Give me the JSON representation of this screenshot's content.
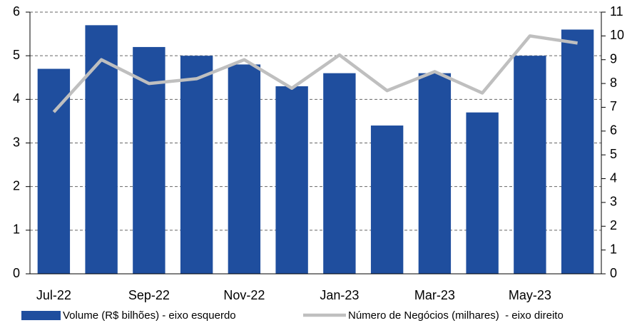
{
  "chart_data": {
    "type": "bar_line",
    "categories": [
      "Jul-22",
      null,
      "Sep-22",
      null,
      "Nov-22",
      null,
      "Jan-23",
      null,
      "Mar-23",
      null,
      "May-23",
      null
    ],
    "series": [
      {
        "name": "Volume (R$ bilhões) - eixo esquerdo",
        "type": "bar",
        "color": "#1f4e9e",
        "axis": "y",
        "values": [
          4.7,
          5.7,
          5.2,
          5.0,
          4.8,
          4.3,
          4.6,
          3.4,
          4.6,
          3.7,
          5.0,
          5.6
        ]
      },
      {
        "name": "Número de Negócios (milhares)  - eixo direito",
        "type": "line",
        "color": "#bfbfbf",
        "axis": "y2",
        "values": [
          6.8,
          9.0,
          8.0,
          8.2,
          9.0,
          7.8,
          9.2,
          7.7,
          8.5,
          7.6,
          10.0,
          9.7
        ]
      }
    ],
    "ylim": [
      0,
      6
    ],
    "yticks": [
      0,
      1,
      2,
      3,
      4,
      5,
      6
    ],
    "y2lim": [
      0,
      11
    ],
    "y2ticks": [
      0,
      1,
      2,
      3,
      4,
      5,
      6,
      7,
      8,
      9,
      10,
      11
    ],
    "grid": true
  }
}
